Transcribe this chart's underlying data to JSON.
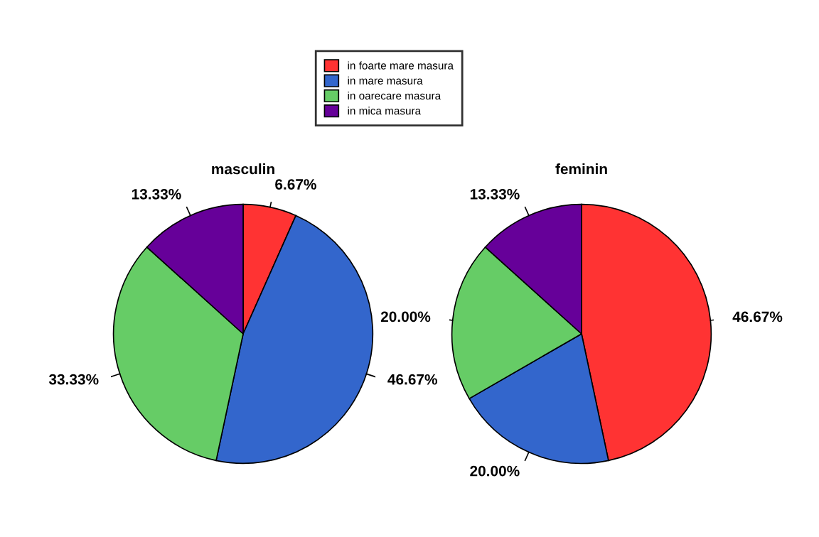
{
  "chart_data": [
    {
      "type": "pie",
      "title": "masculin",
      "categories": [
        "in foarte mare masura",
        "in mare masura",
        "in oarecare masura",
        "in mica masura"
      ],
      "values": [
        6.67,
        46.67,
        33.33,
        13.33
      ],
      "colors": [
        "#ff3333",
        "#3366cc",
        "#66cc66",
        "#660099"
      ],
      "value_labels": [
        "6.67%",
        "46.67%",
        "33.33%",
        "13.33%"
      ],
      "legend": "top"
    },
    {
      "type": "pie",
      "title": "feminin",
      "categories": [
        null,
        null,
        null,
        null
      ],
      "values": [
        46.67,
        20,
        20,
        13.33
      ],
      "colors": [
        "#ff3333",
        "#3366cc",
        "#66cc66",
        "#660099"
      ],
      "value_labels": [
        "46.67%",
        "20.00%",
        "20.00%",
        "13.33%"
      ]
    }
  ]
}
